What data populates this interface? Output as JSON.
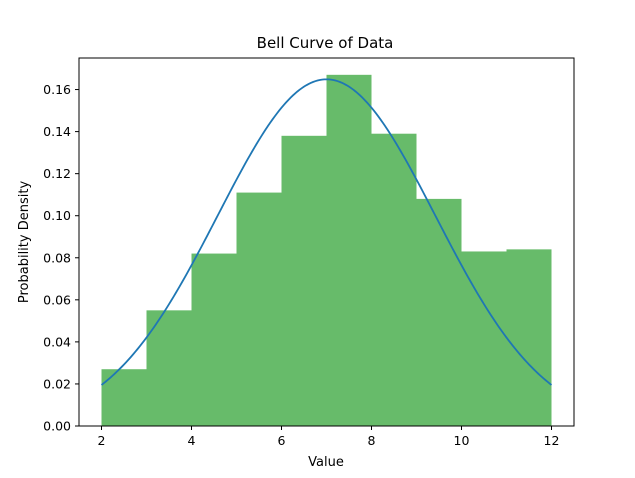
{
  "chart_data": {
    "type": "bar",
    "title": "Bell Curve of Data",
    "xlabel": "Value",
    "ylabel": "Probability Density",
    "xlim": [
      1.5,
      12.5
    ],
    "ylim": [
      0,
      0.175
    ],
    "x_ticks": [
      "2",
      "4",
      "6",
      "8",
      "10",
      "12"
    ],
    "y_ticks": [
      "0.00",
      "0.02",
      "0.04",
      "0.06",
      "0.08",
      "0.10",
      "0.12",
      "0.14",
      "0.16"
    ],
    "histogram": {
      "bin_edges": [
        2,
        3,
        4,
        5,
        6,
        7,
        8,
        9,
        10,
        11,
        12
      ],
      "values": [
        0.027,
        0.055,
        0.082,
        0.111,
        0.138,
        0.167,
        0.139,
        0.108,
        0.083,
        0.084
      ],
      "color": "#4caf50"
    },
    "curve": {
      "type": "line",
      "distribution": "normal",
      "mean": 7.0,
      "std": 2.42,
      "x_range": [
        2,
        12
      ],
      "color": "#1f77b4"
    },
    "grid": false
  }
}
